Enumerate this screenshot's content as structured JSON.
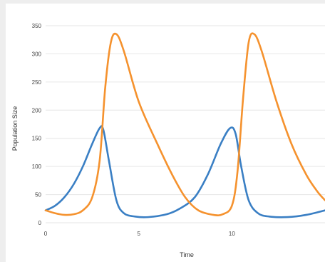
{
  "chart_data": {
    "type": "line",
    "title": "",
    "xlabel": "Time",
    "ylabel": "Population Size",
    "xlim": [
      0,
      15
    ],
    "ylim": [
      0,
      350
    ],
    "x_ticks": [
      "0",
      "5",
      "10"
    ],
    "y_ticks": [
      "0",
      "50",
      "100",
      "150",
      "200",
      "250",
      "300",
      "350"
    ],
    "grid": true,
    "legend": "none",
    "series": [
      {
        "color": "#3a7fc4",
        "points": [
          [
            0,
            22
          ],
          [
            0.5,
            30
          ],
          [
            1,
            45
          ],
          [
            1.5,
            68
          ],
          [
            2,
            100
          ],
          [
            2.5,
            140
          ],
          [
            2.9,
            168
          ],
          [
            3.1,
            165
          ],
          [
            3.4,
            110
          ],
          [
            3.8,
            40
          ],
          [
            4.2,
            17
          ],
          [
            4.8,
            11
          ],
          [
            5.5,
            10
          ],
          [
            6.5,
            15
          ],
          [
            7.2,
            25
          ],
          [
            8,
            45
          ],
          [
            8.7,
            85
          ],
          [
            9.4,
            140
          ],
          [
            9.9,
            168
          ],
          [
            10.2,
            158
          ],
          [
            10.5,
            100
          ],
          [
            10.9,
            40
          ],
          [
            11.4,
            17
          ],
          [
            12,
            11
          ],
          [
            13,
            10
          ],
          [
            14,
            14
          ],
          [
            15,
            22
          ]
        ]
      },
      {
        "color": "#f5922e",
        "points": [
          [
            0,
            22
          ],
          [
            0.5,
            17
          ],
          [
            1,
            14
          ],
          [
            1.5,
            15
          ],
          [
            2,
            22
          ],
          [
            2.5,
            45
          ],
          [
            2.9,
            110
          ],
          [
            3.2,
            240
          ],
          [
            3.5,
            320
          ],
          [
            3.8,
            335
          ],
          [
            4.2,
            305
          ],
          [
            5,
            215
          ],
          [
            6,
            140
          ],
          [
            6.8,
            85
          ],
          [
            7.5,
            45
          ],
          [
            8.2,
            22
          ],
          [
            9,
            14
          ],
          [
            9.5,
            15
          ],
          [
            10,
            30
          ],
          [
            10.3,
            90
          ],
          [
            10.6,
            220
          ],
          [
            10.9,
            320
          ],
          [
            11.2,
            335
          ],
          [
            11.6,
            305
          ],
          [
            12.4,
            215
          ],
          [
            13.2,
            140
          ],
          [
            14,
            85
          ],
          [
            14.6,
            55
          ],
          [
            15,
            40
          ]
        ]
      }
    ]
  }
}
